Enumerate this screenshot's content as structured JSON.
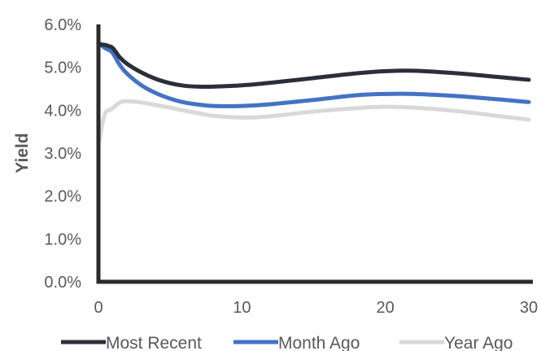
{
  "chart_data": {
    "type": "line",
    "title": "",
    "xlabel": "",
    "ylabel": "Yield",
    "xlim": [
      0,
      30
    ],
    "ylim": [
      0,
      6
    ],
    "x_ticks": [
      0,
      10,
      20,
      30
    ],
    "x_tick_labels": [
      "0",
      "10",
      "20",
      "30"
    ],
    "y_ticks": [
      0,
      1,
      2,
      3,
      4,
      5,
      6
    ],
    "y_tick_labels": [
      "0.0%",
      "1.0%",
      "2.0%",
      "3.0%",
      "4.0%",
      "5.0%",
      "6.0%"
    ],
    "grid": false,
    "legend_position": "bottom",
    "series": [
      {
        "name": "Most Recent",
        "color": "#2b2f3a",
        "x": [
          0.08,
          0.25,
          0.5,
          0.75,
          1,
          1.5,
          2,
          3,
          4,
          5,
          6,
          7,
          8,
          10,
          12,
          15,
          18,
          20,
          22,
          25,
          28,
          30
        ],
        "y": [
          5.55,
          5.53,
          5.52,
          5.49,
          5.45,
          5.23,
          5.08,
          4.88,
          4.73,
          4.63,
          4.57,
          4.55,
          4.55,
          4.58,
          4.64,
          4.75,
          4.86,
          4.91,
          4.92,
          4.86,
          4.77,
          4.71
        ]
      },
      {
        "name": "Month Ago",
        "color": "#4472c4",
        "x": [
          0.08,
          0.25,
          0.5,
          0.75,
          1,
          1.5,
          2,
          3,
          4,
          5,
          6,
          7,
          8,
          10,
          12,
          15,
          18,
          20,
          22,
          25,
          28,
          30
        ],
        "y": [
          5.55,
          5.5,
          5.44,
          5.4,
          5.33,
          5.05,
          4.85,
          4.58,
          4.4,
          4.27,
          4.18,
          4.13,
          4.1,
          4.1,
          4.14,
          4.24,
          4.35,
          4.38,
          4.38,
          4.33,
          4.25,
          4.19
        ]
      },
      {
        "name": "Year Ago",
        "color": "#d9d9d9",
        "x": [
          0.08,
          0.25,
          0.5,
          0.75,
          1,
          1.5,
          2,
          3,
          4,
          5,
          6,
          7,
          8,
          10,
          12,
          15,
          18,
          20,
          22,
          25,
          28,
          30
        ],
        "y": [
          3.3,
          3.65,
          3.95,
          4.0,
          4.05,
          4.18,
          4.21,
          4.18,
          4.12,
          4.06,
          3.99,
          3.93,
          3.87,
          3.83,
          3.86,
          3.97,
          4.05,
          4.08,
          4.06,
          3.98,
          3.86,
          3.78
        ]
      }
    ]
  }
}
